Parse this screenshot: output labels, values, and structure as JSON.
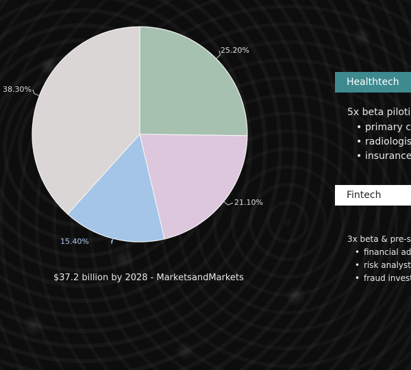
{
  "chart_data": {
    "type": "pie",
    "slices": [
      {
        "label": "25.20%",
        "value": 25.2,
        "color": "#a7c1b0"
      },
      {
        "label": "21.10%",
        "value": 21.1,
        "color": "#dcc7dc"
      },
      {
        "label": "15.40%",
        "value": 15.4,
        "color": "#a4c4e8"
      },
      {
        "label": "38.30%",
        "value": 38.3,
        "color": "#dbd6d6"
      }
    ],
    "start": "12 o'clock",
    "direction": "clockwise",
    "legend": "none"
  },
  "caption": "$37.2 billion by 2028 - MarketsandMarkets",
  "sidebar": {
    "healthtech": {
      "label": "Healthtech",
      "description": "5x beta piloti",
      "items": [
        "primary c",
        "radiologis",
        "insurance"
      ]
    },
    "fintech": {
      "label": "Fintech",
      "description": "3x beta & pre-s",
      "items": [
        "financial ad",
        "risk analyst",
        "fraud invest"
      ]
    }
  }
}
